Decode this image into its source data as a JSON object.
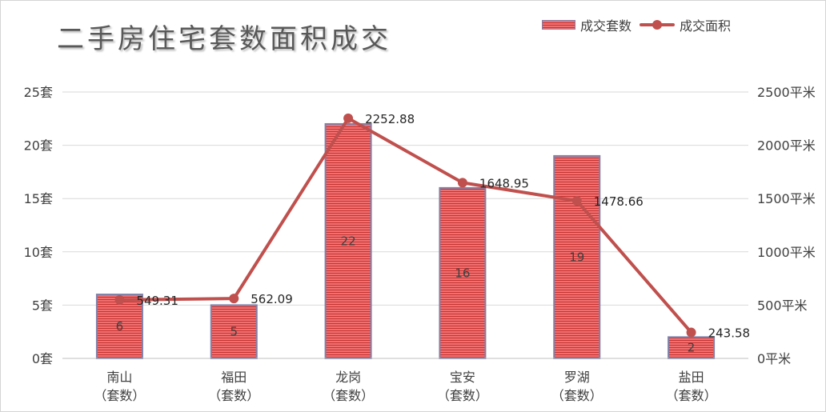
{
  "chart_data": {
    "type": "bar+line",
    "title": "二手房住宅套数面积成交",
    "categories": [
      "南山\n（套数）",
      "福田\n（套数）",
      "龙岗\n（套数）",
      "宝安\n（套数）",
      "罗湖\n（套数）",
      "盐田\n（套数）"
    ],
    "series": [
      {
        "name": "成交套数",
        "type": "bar",
        "axis": "left",
        "values": [
          6,
          5,
          22,
          16,
          19,
          2
        ],
        "labels": [
          "6",
          "5",
          "22",
          "16",
          "19",
          "2"
        ]
      },
      {
        "name": "成交面积",
        "type": "line",
        "axis": "right",
        "values": [
          549.31,
          562.09,
          2252.88,
          1648.95,
          1478.66,
          243.58
        ],
        "labels": [
          "549.31",
          "562.09",
          "2252.88",
          "1648.95",
          "1478.66",
          "243.58"
        ]
      }
    ],
    "left_axis": {
      "ylim": [
        0,
        25
      ],
      "ticks": [
        0,
        5,
        10,
        15,
        20,
        25
      ],
      "tick_labels": [
        "0套",
        "5套",
        "10套",
        "15套",
        "20套",
        "25套"
      ]
    },
    "right_axis": {
      "ylim": [
        0,
        2500
      ],
      "ticks": [
        0,
        500,
        1000,
        1500,
        2000,
        2500
      ],
      "tick_labels": [
        "0平米",
        "500平米",
        "1000平米",
        "1500平米",
        "2000平米",
        "2500平米"
      ]
    },
    "grid": true,
    "legend_position": "top-right",
    "colors": {
      "bar_fill": "#f07070",
      "bar_stripe": "#c83232",
      "bar_border": "#8080a8",
      "line": "#c0504d",
      "grid": "#d9d9d9"
    }
  }
}
